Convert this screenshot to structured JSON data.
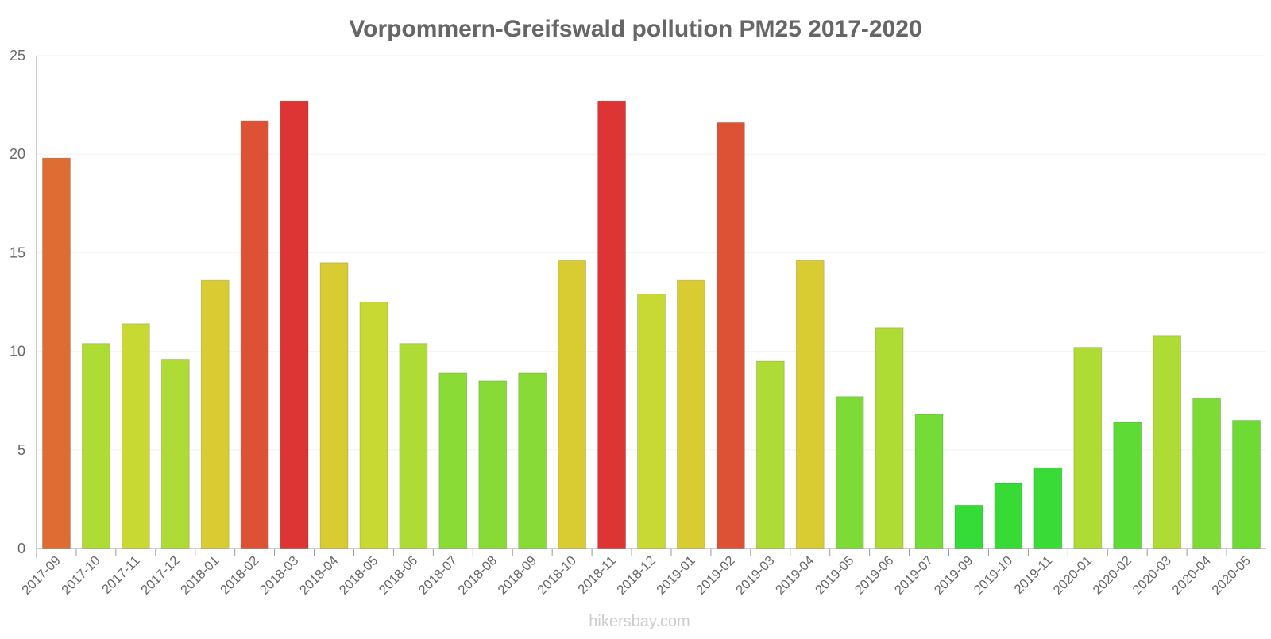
{
  "chart_data": {
    "type": "bar",
    "title": "Vorpommern-Greifswald pollution PM25 2017-2020",
    "xlabel": "",
    "ylabel": "",
    "ylim": [
      0,
      25
    ],
    "yticks": [
      0,
      5,
      10,
      15,
      20,
      25
    ],
    "grid": true,
    "categories": [
      "2017-09",
      "2017-10",
      "2017-11",
      "2017-12",
      "2018-01",
      "2018-02",
      "2018-03",
      "2018-04",
      "2018-05",
      "2018-06",
      "2018-07",
      "2018-08",
      "2018-09",
      "2018-10",
      "2018-11",
      "2018-12",
      "2019-01",
      "2019-02",
      "2019-03",
      "2019-04",
      "2019-05",
      "2019-06",
      "2019-07",
      "2019-09",
      "2019-10",
      "2019-11",
      "2020-01",
      "2020-02",
      "2020-03",
      "2020-04",
      "2020-05"
    ],
    "values": [
      19.8,
      10.4,
      11.4,
      9.6,
      13.6,
      21.7,
      22.7,
      14.5,
      12.5,
      10.4,
      8.9,
      8.5,
      8.9,
      14.6,
      22.7,
      12.9,
      13.6,
      21.6,
      9.5,
      14.6,
      7.7,
      11.2,
      6.8,
      2.2,
      3.3,
      4.1,
      10.2,
      6.4,
      10.8,
      7.6,
      6.5
    ],
    "colors": [
      "#dd6d32",
      "#afdb35",
      "#c9d934",
      "#aedb35",
      "#d9cc33",
      "#dd5234",
      "#dd3434",
      "#d9cc33",
      "#c9d934",
      "#aedb35",
      "#8adb35",
      "#88db36",
      "#88db36",
      "#d9cc33",
      "#dd3434",
      "#c9d934",
      "#d9cc33",
      "#dd5234",
      "#aedb35",
      "#d9cc33",
      "#7edb35",
      "#afdb35",
      "#75db36",
      "#35db36",
      "#38db36",
      "#39db36",
      "#afdb35",
      "#5fdb35",
      "#afdb35",
      "#7edb35",
      "#6edb35"
    ]
  },
  "watermark": "hikersbay.com"
}
